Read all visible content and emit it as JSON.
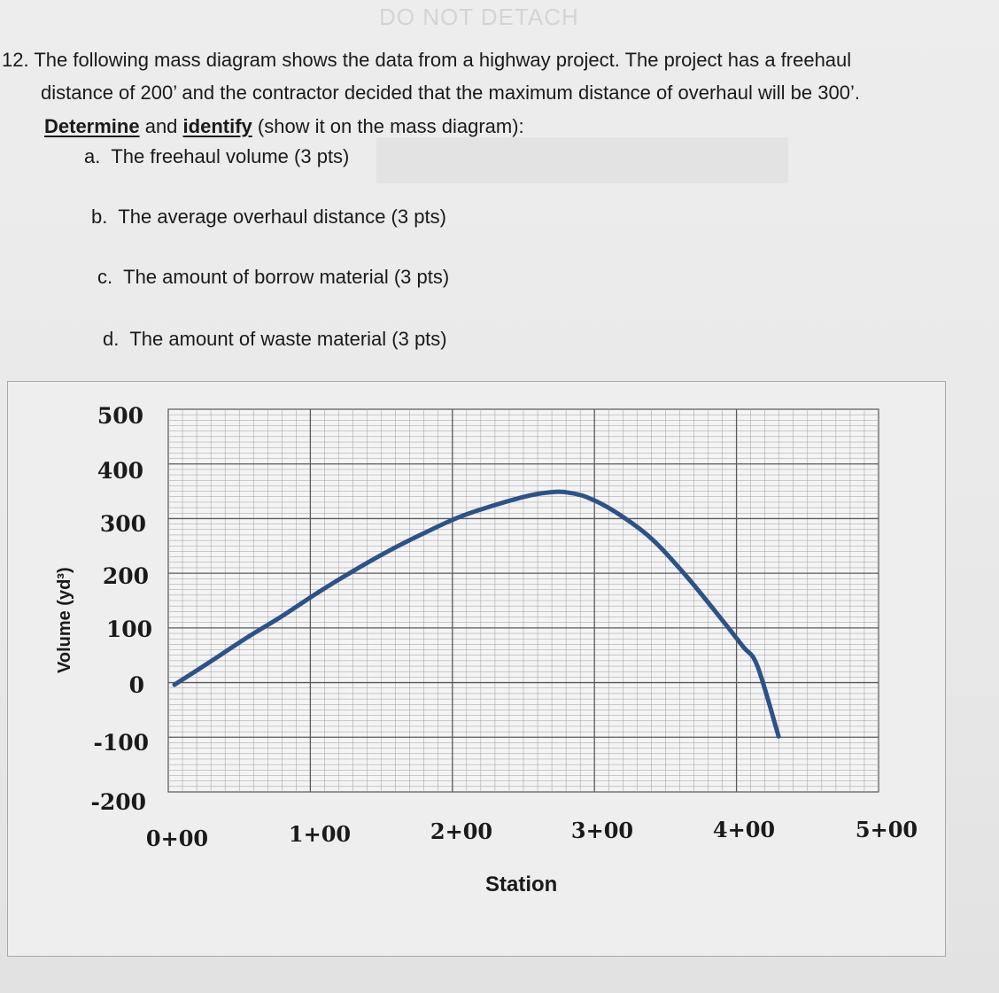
{
  "watermark": "DO NOT DETACH",
  "question": {
    "number": "12.",
    "line1_rest": "The following mass diagram shows the data from a highway project. The project has a freehaul",
    "line2": "distance of 200’ and the contractor decided that the maximum distance of overhaul will be 300’.",
    "line3_determine": "Determine",
    "line3_and": " and ",
    "line3_identify": "identify",
    "line3_rest": " (show it on the mass diagram):",
    "parts": [
      {
        "letter": "a.",
        "text": "The freehaul volume (3 pts)"
      },
      {
        "letter": "b.",
        "text": "The average overhaul distance (3 pts)"
      },
      {
        "letter": "c.",
        "text": "The amount of borrow material (3 pts)"
      },
      {
        "letter": "d.",
        "text": "The amount of waste material (3 pts)"
      }
    ]
  },
  "chart_data": {
    "type": "line",
    "title": "",
    "xlabel": "Station",
    "ylabel": "Volume (yd³)",
    "x_tick_labels": [
      "0+00",
      "1+00",
      "2+00",
      "3+00",
      "4+00",
      "5+00"
    ],
    "y_tick_labels": [
      "500",
      "400",
      "300",
      "200",
      "100",
      "0",
      "-100",
      "-200"
    ],
    "y_ticks": [
      500,
      400,
      300,
      200,
      100,
      0,
      -100,
      -200
    ],
    "xlim": [
      0,
      500
    ],
    "ylim": [
      -200,
      500
    ],
    "grid": true,
    "line_color": "#2d5288",
    "series": [
      {
        "x": [
          0,
          25,
          50,
          75,
          100,
          125,
          150,
          175,
          200,
          225,
          250,
          265,
          275,
          290,
          310,
          335,
          360,
          385,
          400,
          410,
          425
        ],
        "y": [
          0,
          42,
          85,
          125,
          168,
          208,
          245,
          278,
          308,
          330,
          348,
          354,
          354,
          345,
          318,
          270,
          200,
          120,
          70,
          35,
          -95
        ]
      }
    ]
  }
}
